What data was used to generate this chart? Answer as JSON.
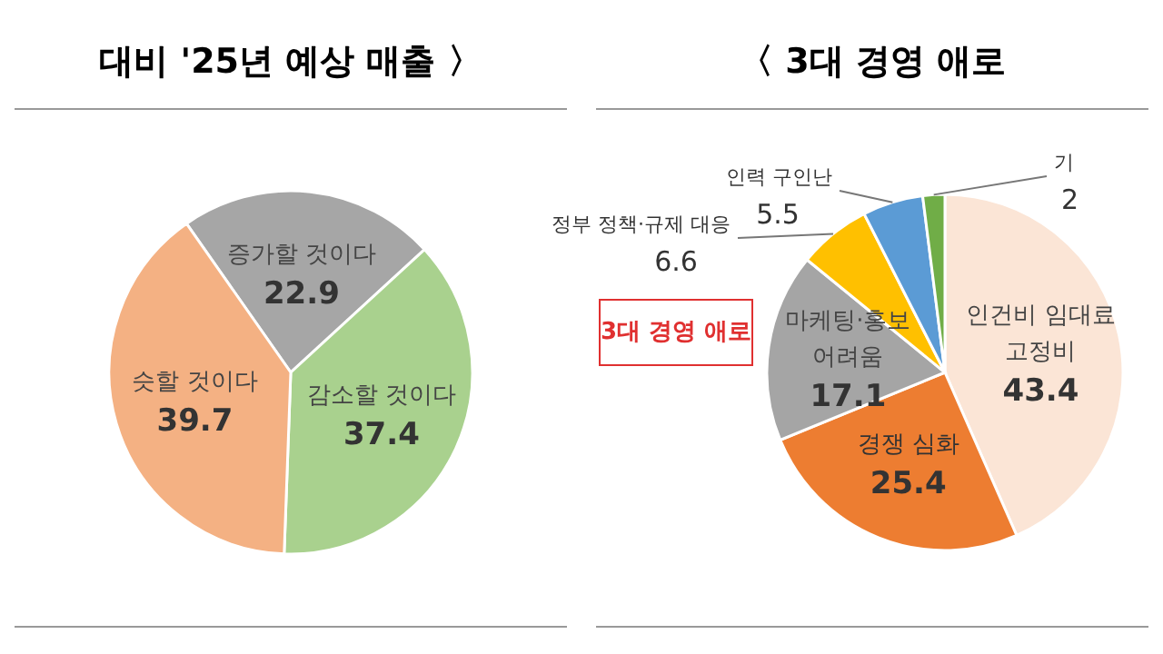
{
  "chart_data": [
    {
      "type": "pie",
      "title": "대비 '25년 예상 매출 〉",
      "categories": [
        "증가할 것이다",
        "감소할 것이다",
        "슷할 것이다"
      ],
      "values": [
        22.9,
        37.4,
        39.7
      ],
      "colors": [
        "#a6a6a6",
        "#a9d18e",
        "#f4b183"
      ],
      "data_labels": true
    },
    {
      "type": "pie",
      "title": "〈 3대 경영 애로",
      "categories": [
        "인건비 임대료 고정비",
        "경쟁 심화",
        "마케팅·홍보 어려움",
        "정부 정책·규제 대응",
        "인력 구인난",
        "기"
      ],
      "values": [
        43.4,
        25.4,
        17.1,
        6.6,
        5.5,
        2.0
      ],
      "colors": [
        "#fbe5d6",
        "#ed7d31",
        "#a5a5a5",
        "#ffc000",
        "#5b9bd5",
        "#70ad47"
      ],
      "value_labels": [
        "43.4",
        "25.4",
        "17.1",
        "6.6",
        "5.5",
        "2"
      ],
      "annotations": [
        "3대 경영 애로"
      ]
    }
  ]
}
